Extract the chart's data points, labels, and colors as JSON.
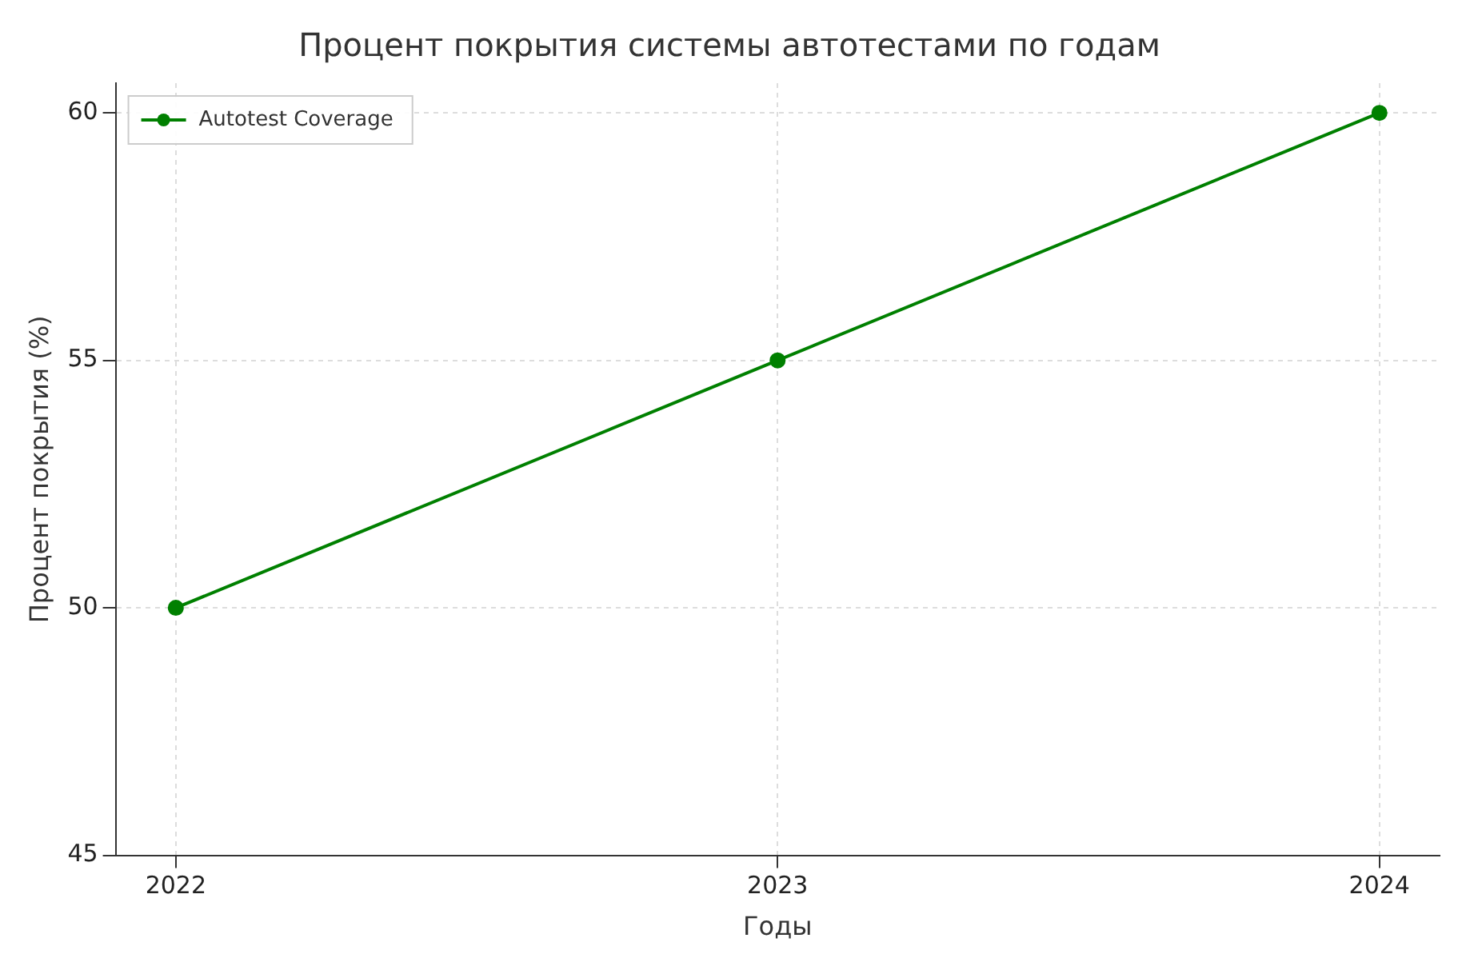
{
  "chart_data": {
    "type": "line",
    "title": "Процент покрытия системы автотестами по годам",
    "xlabel": "Годы",
    "ylabel": "Процент покрытия (%)",
    "x": [
      2022,
      2023,
      2024
    ],
    "series": [
      {
        "name": "Autotest Coverage",
        "color": "#008000",
        "values": [
          50,
          55,
          60
        ]
      }
    ],
    "xlim": [
      2021.9,
      2024.1
    ],
    "xticks": [
      2022,
      2023,
      2024
    ],
    "ylim": [
      45,
      60.6
    ],
    "yticks": [
      45,
      50,
      55,
      60
    ],
    "grid": true,
    "legend": "top left",
    "marker": "circle",
    "line_style": "solid"
  }
}
